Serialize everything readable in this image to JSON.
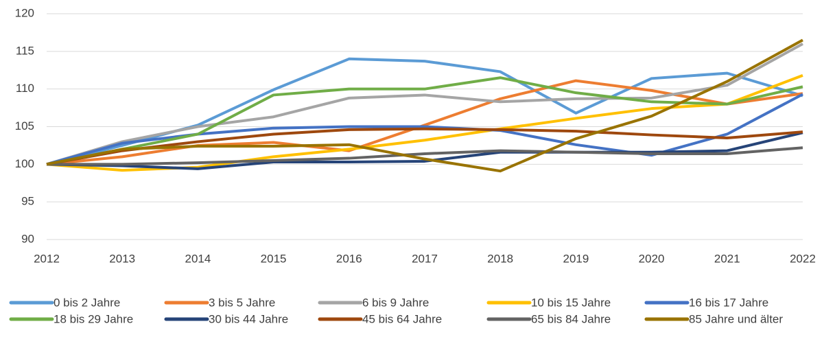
{
  "chart_data": {
    "type": "line",
    "categories": [
      "2012",
      "2013",
      "2014",
      "2015",
      "2016",
      "2017",
      "2018",
      "2019",
      "2020",
      "2021",
      "2022"
    ],
    "ylim": [
      90,
      120
    ],
    "yticks": [
      90,
      95,
      100,
      105,
      110,
      115,
      120
    ],
    "grid": true,
    "legend": "bottom",
    "series": [
      {
        "name": "0 bis 2 Jahre",
        "color": "#5b9bd5",
        "values": [
          100,
          102.5,
          105.2,
          109.9,
          114,
          113.7,
          112.3,
          106.8,
          111.4,
          112.1,
          109.1
        ]
      },
      {
        "name": "3 bis 5 Jahre",
        "color": "#ed7d31",
        "values": [
          100,
          101,
          102.5,
          102.9,
          101.8,
          105.2,
          108.7,
          111.1,
          109.8,
          108,
          109.4
        ]
      },
      {
        "name": "6 bis 9 Jahre",
        "color": "#a5a5a5",
        "values": [
          100,
          103,
          105,
          106.3,
          108.8,
          109.2,
          108.3,
          108.7,
          108.8,
          110.5,
          116
        ]
      },
      {
        "name": "10 bis 15 Jahre",
        "color": "#ffc000",
        "values": [
          100,
          99.2,
          99.6,
          101,
          102,
          103.2,
          104.7,
          106.1,
          107.4,
          108,
          111.8
        ]
      },
      {
        "name": "16 bis 17 Jahre",
        "color": "#4472c4",
        "values": [
          100,
          102.8,
          104,
          104.8,
          105,
          105,
          104.5,
          102.6,
          101.2,
          104,
          109.3
        ]
      },
      {
        "name": "18 bis 29 Jahre",
        "color": "#70ad47",
        "values": [
          100,
          102,
          104,
          109.2,
          110,
          110,
          111.5,
          109.5,
          108.3,
          108,
          110.3
        ]
      },
      {
        "name": "30 bis 44 Jahre",
        "color": "#264478",
        "values": [
          100,
          99.8,
          99.4,
          100.3,
          100.3,
          100.4,
          101.6,
          101.6,
          101.6,
          101.8,
          104.2
        ]
      },
      {
        "name": "45 bis 64 Jahre",
        "color": "#9e480e",
        "values": [
          100,
          101.8,
          103,
          104,
          104.6,
          104.7,
          104.6,
          104.4,
          103.9,
          103.5,
          104.3
        ]
      },
      {
        "name": "65 bis 84 Jahre",
        "color": "#636363",
        "values": [
          100,
          100,
          100.2,
          100.5,
          100.8,
          101.4,
          101.8,
          101.6,
          101.4,
          101.4,
          102.2
        ]
      },
      {
        "name": "85 Jahre und älter",
        "color": "#997300",
        "values": [
          100,
          102,
          102.4,
          102.4,
          102.6,
          100.7,
          99.1,
          103.4,
          106.4,
          111,
          116.5
        ]
      }
    ]
  }
}
